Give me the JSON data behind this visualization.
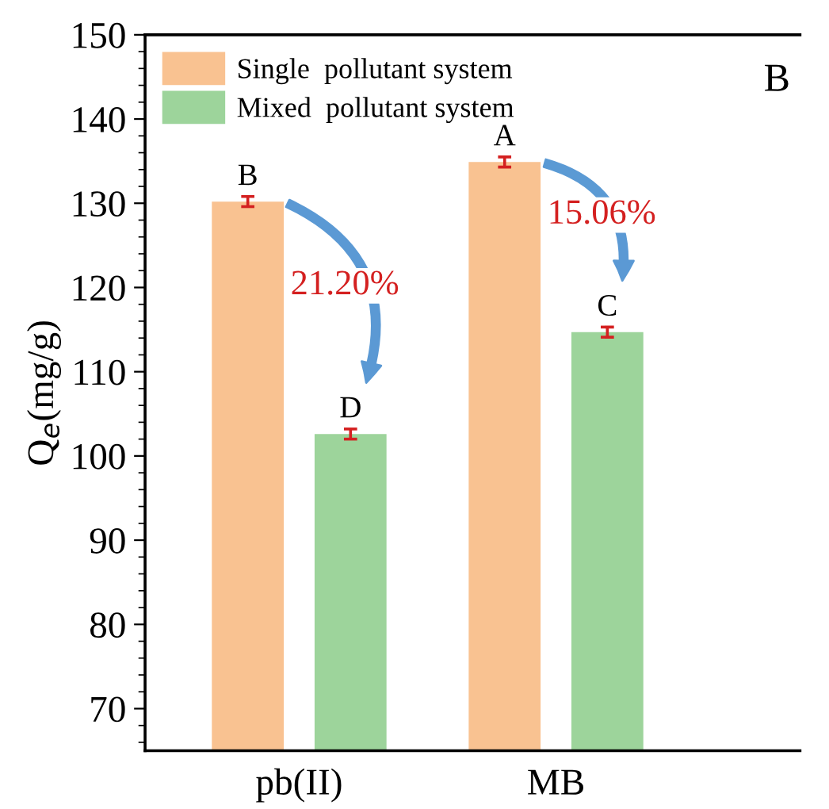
{
  "chart_data": {
    "type": "bar",
    "ylabel": "Q$_{e}$(mg/g)",
    "categories": [
      "pb(II)",
      "MB"
    ],
    "series": [
      {
        "name": "Single  pollutant system",
        "color": "#f9c291",
        "values": [
          130.2,
          134.9
        ],
        "errors": [
          0.6,
          0.6
        ]
      },
      {
        "name": "Mixed  pollutant system",
        "color": "#9dd49b",
        "values": [
          102.6,
          114.7
        ],
        "errors": [
          0.6,
          0.6
        ]
      }
    ],
    "ylim": [
      65,
      150
    ],
    "yticks": [
      70,
      80,
      90,
      100,
      110,
      120,
      130,
      140,
      150
    ],
    "annotations": [
      "B",
      "A",
      "D",
      "C",
      "21.20%",
      "15.06%",
      "B"
    ],
    "legend": "top left",
    "grid": false
  }
}
